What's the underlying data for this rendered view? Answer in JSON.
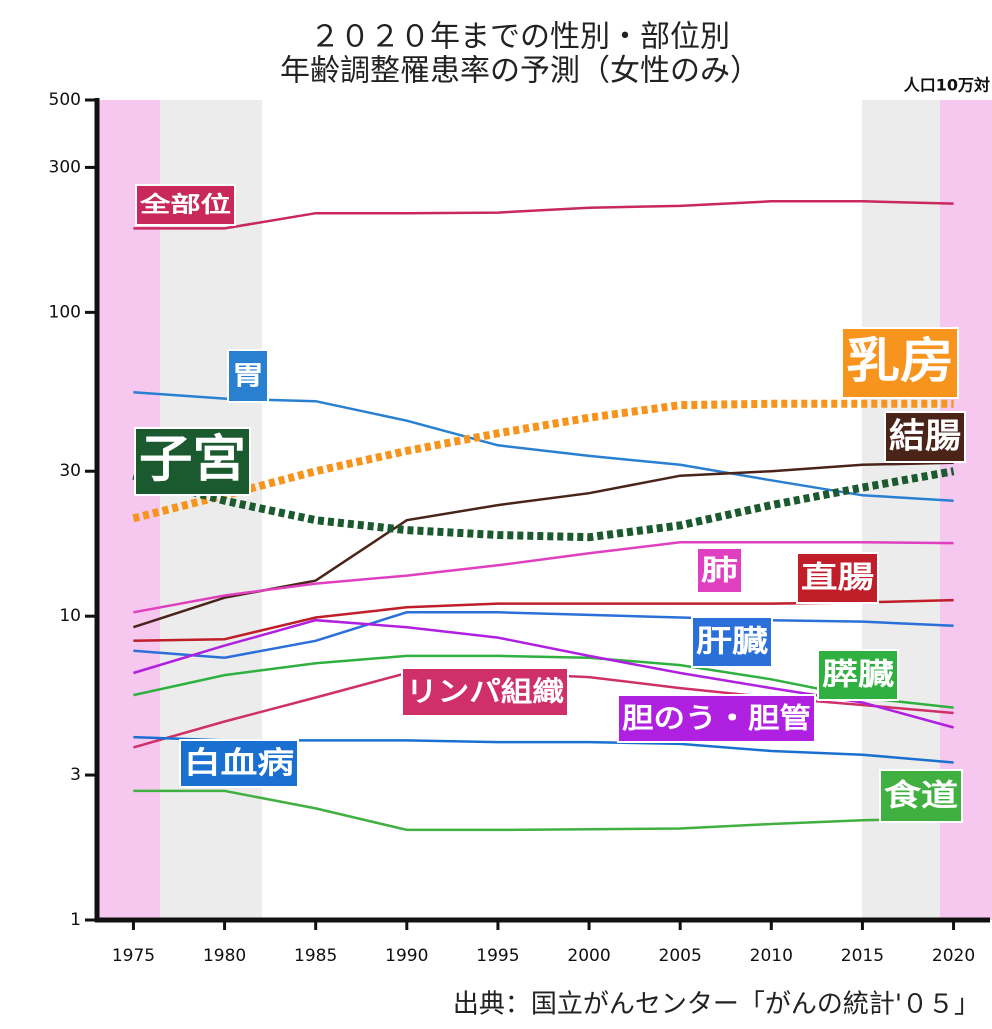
{
  "chart_data": {
    "type": "line",
    "title": [
      "２０２０年までの性別・部位別",
      "年齢調整罹患率の予測（女性のみ）"
    ],
    "unit_label": "人口10万対",
    "source": "出典：国立がんセンター「がんの統計'０５」",
    "log_scale": true,
    "x": [
      1975,
      1980,
      1985,
      1990,
      1995,
      2000,
      2005,
      2010,
      2015,
      2020
    ],
    "xlim": [
      1973,
      2022
    ],
    "xticks": [
      1975,
      1980,
      1985,
      1990,
      1995,
      2000,
      2005,
      2010,
      2015,
      2020
    ],
    "ylim": [
      1,
      500
    ],
    "yticks": [
      1,
      3,
      10,
      30,
      100,
      300,
      500
    ],
    "series": [
      {
        "name": "全部位",
        "color": "#c8285a",
        "style": "solid",
        "values": [
          189,
          189,
          212,
          212,
          213,
          221,
          224,
          232,
          232,
          228
        ]
      },
      {
        "name": "胃",
        "color": "#2a80d0",
        "style": "solid",
        "values": [
          54.6,
          52,
          51,
          44,
          36.5,
          33.7,
          31.5,
          28,
          25,
          24
        ]
      },
      {
        "name": "乳房",
        "color": "#f7941d",
        "style": "dotted",
        "values": [
          21,
          25,
          30,
          35,
          40,
          45,
          49.5,
          50,
          50,
          50
        ]
      },
      {
        "name": "結腸",
        "color": "#4a2418",
        "style": "solid",
        "values": [
          9.2,
          11.5,
          13.1,
          20.7,
          23.2,
          25.4,
          29,
          30,
          31.5,
          32
        ]
      },
      {
        "name": "子宮",
        "color": "#1a5a2e",
        "style": "dotted",
        "values": [
          29,
          24,
          20.7,
          19.2,
          18.5,
          18.2,
          19.9,
          23.2,
          26.5,
          30
        ]
      },
      {
        "name": "肺",
        "color": "#e040c0",
        "style": "solid",
        "values": [
          10.3,
          11.7,
          12.8,
          13.6,
          14.7,
          16.1,
          17.5,
          17.5,
          17.5,
          17.4
        ]
      },
      {
        "name": "直腸",
        "color": "#c01e28",
        "style": "solid",
        "values": [
          8.3,
          8.4,
          9.9,
          10.7,
          11,
          11,
          11,
          11,
          11.1,
          11.3
        ]
      },
      {
        "name": "肝臓",
        "color": "#2a70d8",
        "style": "solid",
        "values": [
          7.7,
          7.3,
          8.3,
          10.3,
          10.3,
          10.1,
          9.9,
          9.7,
          9.6,
          9.3
        ]
      },
      {
        "name": "膵臓",
        "color": "#30b040",
        "style": "solid",
        "values": [
          5.5,
          6.4,
          7.0,
          7.4,
          7.4,
          7.3,
          6.9,
          6.2,
          5.4,
          5.0
        ]
      },
      {
        "name": "リンパ組織",
        "color": "#d0306a",
        "style": "solid",
        "values": [
          3.7,
          4.5,
          5.4,
          6.5,
          6.5,
          6.3,
          5.8,
          5.4,
          5.1,
          4.8
        ]
      },
      {
        "name": "胆のう・胆管",
        "color": "#b020e0",
        "style": "solid",
        "values": [
          6.5,
          8,
          9.7,
          9.2,
          8.5,
          7.4,
          6.5,
          5.8,
          5.2,
          4.3
        ]
      },
      {
        "name": "白血病",
        "color": "#1a70d0",
        "style": "solid",
        "values": [
          4.0,
          3.9,
          3.9,
          3.9,
          3.85,
          3.85,
          3.8,
          3.6,
          3.5,
          3.3
        ]
      },
      {
        "name": "食道",
        "color": "#40b040",
        "style": "solid",
        "values": [
          2.66,
          2.66,
          2.33,
          1.98,
          1.98,
          1.99,
          2.0,
          2.07,
          2.13,
          2.16
        ]
      }
    ]
  }
}
